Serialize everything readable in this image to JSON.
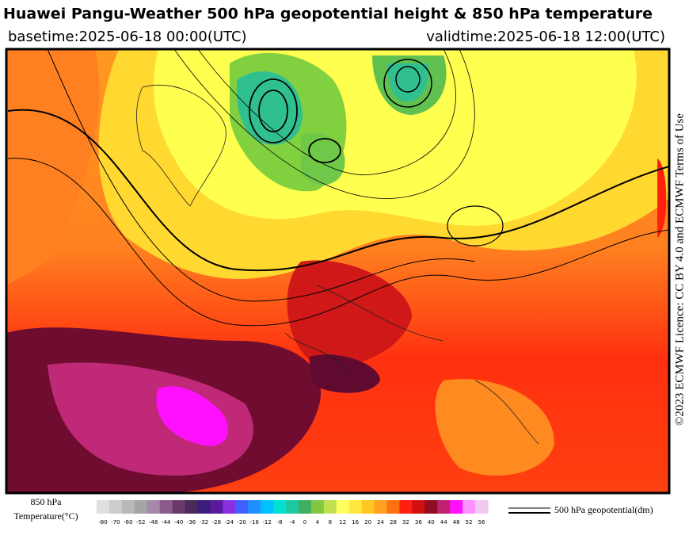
{
  "header": {
    "title": "Huawei Pangu-Weather 500 hPa geopotential height & 850 hPa temperature",
    "basetime": "basetime:2025-06-18 00:00(UTC)",
    "validtime": "validtime:2025-06-18 12:00(UTC)"
  },
  "credit": "©2023 ECMWF Licence: CC BY 4.0 and ECMWF Terms of Use",
  "colorbar": {
    "label_line1": "850 hPa",
    "label_line2": "Temperature(°C)",
    "ticks": [
      -80,
      -70,
      -60,
      -52,
      -48,
      -44,
      -40,
      -36,
      -32,
      -28,
      -24,
      -20,
      -16,
      -12,
      -8,
      -4,
      0,
      4,
      8,
      12,
      16,
      20,
      24,
      28,
      32,
      36,
      40,
      44,
      48,
      52,
      56
    ],
    "colors": [
      "#e0e0e0",
      "#cccccc",
      "#b8b8b8",
      "#a4a4a4",
      "#a888a8",
      "#8c5a8c",
      "#6a3a6a",
      "#4a2a5a",
      "#3c1c7c",
      "#5a1aa0",
      "#8a30e0",
      "#4060ff",
      "#2090ff",
      "#00c0ff",
      "#00e0d0",
      "#20c8a0",
      "#40b060",
      "#80c840",
      "#c0e050",
      "#ffff60",
      "#ffe840",
      "#ffc820",
      "#ffa020",
      "#ff7010",
      "#ff2010",
      "#d01010",
      "#900c20",
      "#c02070",
      "#ff10ff",
      "#ff90ff",
      "#f0c8f0"
    ]
  },
  "legend": {
    "label": "500 hPa geopotential(dm)"
  }
}
